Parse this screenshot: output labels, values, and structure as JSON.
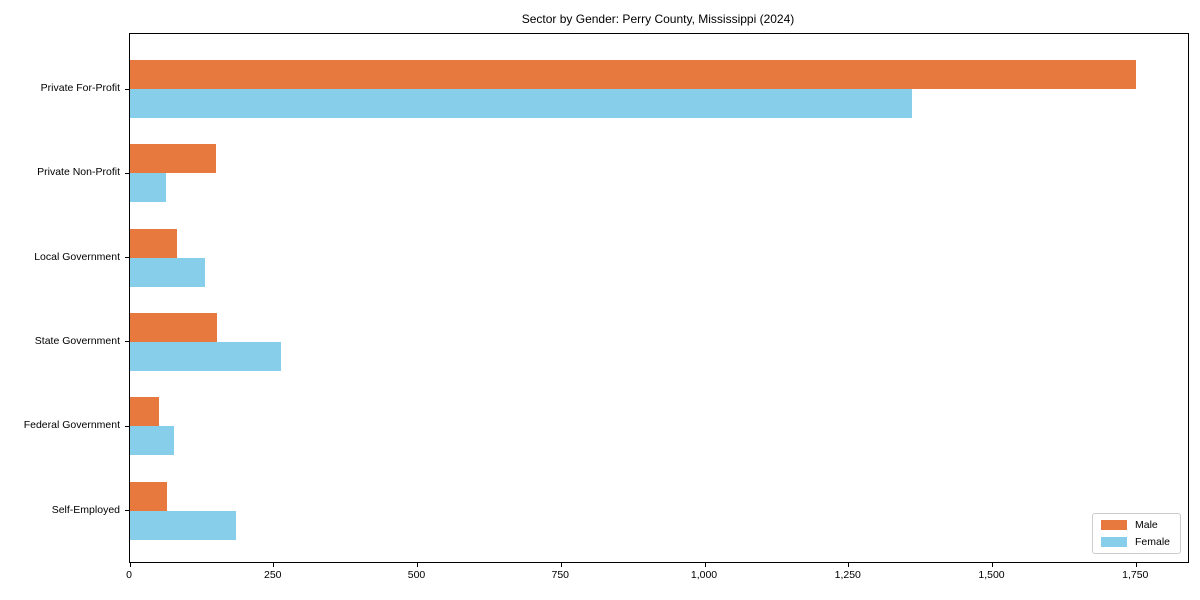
{
  "chart_data": {
    "type": "bar",
    "orientation": "horizontal",
    "title": "Sector by Gender: Perry County, Mississippi (2024)",
    "xlabel": "",
    "ylabel": "",
    "categories": [
      "Private For-Profit",
      "Private Non-Profit",
      "Local Government",
      "State Government",
      "Federal Government",
      "Self-Employed"
    ],
    "series": [
      {
        "name": "Male",
        "color": "#e8793e",
        "values": [
          1750,
          150,
          82,
          152,
          50,
          65
        ]
      },
      {
        "name": "Female",
        "color": "#87ceeb",
        "values": [
          1360,
          62,
          130,
          262,
          77,
          185
        ]
      }
    ],
    "xlim": [
      0,
      1840
    ],
    "xticks": [
      0,
      250,
      500,
      750,
      1000,
      1250,
      1500,
      1750
    ],
    "xtick_labels": [
      "0",
      "250",
      "500",
      "750",
      "1,000",
      "1,250",
      "1,500",
      "1,750"
    ],
    "grid": false,
    "legend": {
      "position": "lower right"
    },
    "frame": "full-box"
  }
}
